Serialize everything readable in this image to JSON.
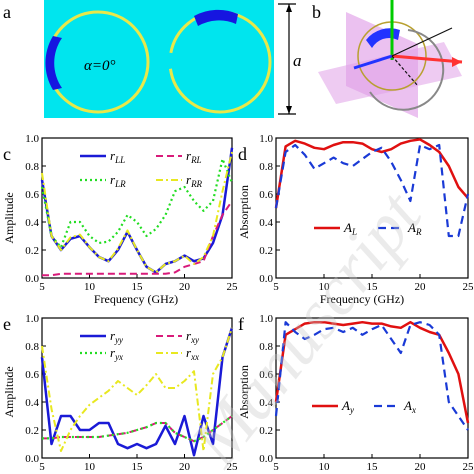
{
  "panel_labels": [
    "a",
    "b",
    "c",
    "d",
    "e",
    "f"
  ],
  "panel_a": {
    "background": "#00e5ee",
    "ring_color": "#e8e84a",
    "patch_color": "#1616e0",
    "alpha_label": "α=0°",
    "dimension_label": "a"
  },
  "panel_b": {
    "colors": [
      "#ff3333",
      "#2233ff",
      "#00cc00",
      "#e0a0e8"
    ]
  },
  "axes": {
    "x_ticks": [
      "5",
      "10",
      "15",
      "20",
      "25"
    ],
    "y_ticks": [
      "0.0",
      "0.2",
      "0.4",
      "0.6",
      "0.8",
      "1.0"
    ],
    "xlabel": "Frequency (GHz)",
    "ylabel_c": "Amplitude",
    "ylabel_d": "Absorption",
    "ylabel_e": "Amplitude",
    "ylabel_f": "Absorption"
  },
  "legends": {
    "c": [
      {
        "label": "r",
        "sub": "LL"
      },
      {
        "label": "r",
        "sub": "RL"
      },
      {
        "label": "r",
        "sub": "LR"
      },
      {
        "label": "r",
        "sub": "RR"
      }
    ],
    "d": [
      {
        "label": "A",
        "sub": "L"
      },
      {
        "label": "A",
        "sub": "R"
      }
    ],
    "e": [
      {
        "label": "r",
        "sub": "yy"
      },
      {
        "label": "r",
        "sub": "xy"
      },
      {
        "label": "r",
        "sub": "yx"
      },
      {
        "label": "r",
        "sub": "xx"
      }
    ],
    "f": [
      {
        "label": "A",
        "sub": "y"
      },
      {
        "label": "A",
        "sub": "x"
      }
    ]
  },
  "watermark": "Manuscript",
  "chart_data": [
    {
      "id": "c",
      "type": "line",
      "xlim": [
        5,
        25
      ],
      "ylim": [
        0,
        1.0
      ],
      "xlabel": "Frequency (GHz)",
      "ylabel": "Amplitude",
      "x": [
        5,
        6,
        7,
        8,
        9,
        10,
        11,
        12,
        13,
        14,
        15,
        16,
        17,
        18,
        19,
        20,
        21,
        22,
        23,
        24,
        25
      ],
      "series": [
        {
          "name": "rLL",
          "color": "#1a1ad6",
          "dash": "",
          "width": 2.5,
          "values": [
            0.7,
            0.3,
            0.2,
            0.28,
            0.3,
            0.22,
            0.15,
            0.12,
            0.2,
            0.33,
            0.2,
            0.08,
            0.04,
            0.1,
            0.12,
            0.16,
            0.12,
            0.14,
            0.25,
            0.45,
            0.93
          ]
        },
        {
          "name": "rRL",
          "color": "#d81b7a",
          "dash": "7,4",
          "width": 2,
          "values": [
            0.02,
            0.02,
            0.03,
            0.03,
            0.03,
            0.03,
            0.03,
            0.03,
            0.03,
            0.03,
            0.03,
            0.03,
            0.03,
            0.03,
            0.04,
            0.08,
            0.1,
            0.12,
            0.3,
            0.45,
            0.55
          ]
        },
        {
          "name": "rLR",
          "color": "#22dd22",
          "dash": "2,3",
          "width": 2.2,
          "values": [
            0.65,
            0.3,
            0.22,
            0.4,
            0.4,
            0.3,
            0.25,
            0.26,
            0.33,
            0.45,
            0.4,
            0.3,
            0.35,
            0.45,
            0.62,
            0.65,
            0.55,
            0.48,
            0.55,
            0.85,
            0.68
          ]
        },
        {
          "name": "rRR",
          "color": "#e8e820",
          "dash": "7,3,2,3",
          "width": 2,
          "values": [
            0.75,
            0.3,
            0.2,
            0.29,
            0.31,
            0.22,
            0.15,
            0.12,
            0.21,
            0.34,
            0.2,
            0.08,
            0.04,
            0.1,
            0.12,
            0.16,
            0.1,
            0.15,
            0.3,
            0.62,
            0.9
          ]
        }
      ]
    },
    {
      "id": "d",
      "type": "line",
      "xlim": [
        5,
        25
      ],
      "ylim": [
        0,
        1.0
      ],
      "xlabel": "Frequency (GHz)",
      "ylabel": "Absorption",
      "x": [
        5,
        6,
        7,
        8,
        9,
        10,
        11,
        12,
        13,
        14,
        15,
        16,
        17,
        18,
        19,
        20,
        21,
        22,
        23,
        24,
        25
      ],
      "series": [
        {
          "name": "AL",
          "color": "#e01010",
          "dash": "",
          "width": 2.5,
          "values": [
            0.5,
            0.94,
            0.98,
            0.96,
            0.93,
            0.92,
            0.95,
            0.97,
            0.97,
            0.96,
            0.92,
            0.9,
            0.92,
            0.96,
            0.98,
            0.99,
            0.95,
            0.9,
            0.8,
            0.65,
            0.57
          ]
        },
        {
          "name": "AR",
          "color": "#1a3ad6",
          "dash": "8,5",
          "width": 2.2,
          "values": [
            0.5,
            0.9,
            0.95,
            0.88,
            0.78,
            0.82,
            0.86,
            0.82,
            0.8,
            0.85,
            0.9,
            0.93,
            0.83,
            0.7,
            0.55,
            0.95,
            0.92,
            0.95,
            0.3,
            0.3,
            0.6
          ]
        }
      ]
    },
    {
      "id": "e",
      "type": "line",
      "xlim": [
        5,
        25
      ],
      "ylim": [
        0,
        1.0
      ],
      "xlabel": "Frequency (GHz)",
      "ylabel": "Amplitude",
      "x": [
        5,
        6,
        7,
        8,
        9,
        10,
        11,
        12,
        13,
        14,
        15,
        16,
        17,
        18,
        19,
        20,
        21,
        22,
        23,
        24,
        25
      ],
      "series": [
        {
          "name": "ryy",
          "color": "#1a1ad6",
          "dash": "",
          "width": 2.5,
          "values": [
            0.72,
            0.1,
            0.3,
            0.3,
            0.2,
            0.2,
            0.25,
            0.25,
            0.1,
            0.07,
            0.1,
            0.07,
            0.1,
            0.23,
            0.1,
            0.3,
            0.02,
            0.3,
            0.1,
            0.72,
            0.93
          ]
        },
        {
          "name": "rxy",
          "color": "#d81b7a",
          "dash": "7,4",
          "width": 2,
          "values": [
            0.14,
            0.14,
            0.15,
            0.15,
            0.15,
            0.15,
            0.15,
            0.16,
            0.17,
            0.18,
            0.2,
            0.22,
            0.25,
            0.25,
            0.18,
            0.15,
            0.12,
            0.15,
            0.2,
            0.25,
            0.3
          ]
        },
        {
          "name": "ryx",
          "color": "#22dd22",
          "dash": "2,3",
          "width": 2.2,
          "values": [
            0.14,
            0.14,
            0.15,
            0.15,
            0.15,
            0.15,
            0.15,
            0.16,
            0.17,
            0.18,
            0.2,
            0.22,
            0.25,
            0.25,
            0.18,
            0.15,
            0.12,
            0.15,
            0.2,
            0.25,
            0.3
          ]
        },
        {
          "name": "rxx",
          "color": "#e8e820",
          "dash": "7,3,2,3",
          "width": 2,
          "values": [
            0.8,
            0.35,
            0.05,
            0.2,
            0.3,
            0.38,
            0.43,
            0.48,
            0.55,
            0.5,
            0.45,
            0.52,
            0.6,
            0.5,
            0.5,
            0.55,
            0.62,
            0.05,
            0.6,
            0.72,
            0.93
          ]
        }
      ]
    },
    {
      "id": "f",
      "type": "line",
      "xlim": [
        5,
        25
      ],
      "ylim": [
        0,
        1.0
      ],
      "xlabel": "Frequency (GHz)",
      "ylabel": "Absorption",
      "x": [
        5,
        6,
        7,
        8,
        9,
        10,
        11,
        12,
        13,
        14,
        15,
        16,
        17,
        18,
        19,
        20,
        21,
        22,
        23,
        24,
        25
      ],
      "series": [
        {
          "name": "Ay",
          "color": "#e01010",
          "dash": "",
          "width": 2.5,
          "values": [
            0.4,
            0.88,
            0.92,
            0.96,
            0.97,
            0.97,
            0.96,
            0.95,
            0.96,
            0.97,
            0.96,
            0.96,
            0.94,
            0.93,
            0.97,
            0.93,
            0.9,
            0.88,
            0.75,
            0.6,
            0.25
          ]
        },
        {
          "name": "Ax",
          "color": "#1a3ad6",
          "dash": "8,5",
          "width": 2.2,
          "values": [
            0.3,
            0.97,
            0.9,
            0.85,
            0.88,
            0.92,
            0.93,
            0.9,
            0.93,
            0.88,
            0.92,
            0.95,
            0.85,
            0.75,
            0.95,
            0.97,
            0.95,
            0.88,
            0.4,
            0.3,
            0.2
          ]
        }
      ]
    }
  ]
}
